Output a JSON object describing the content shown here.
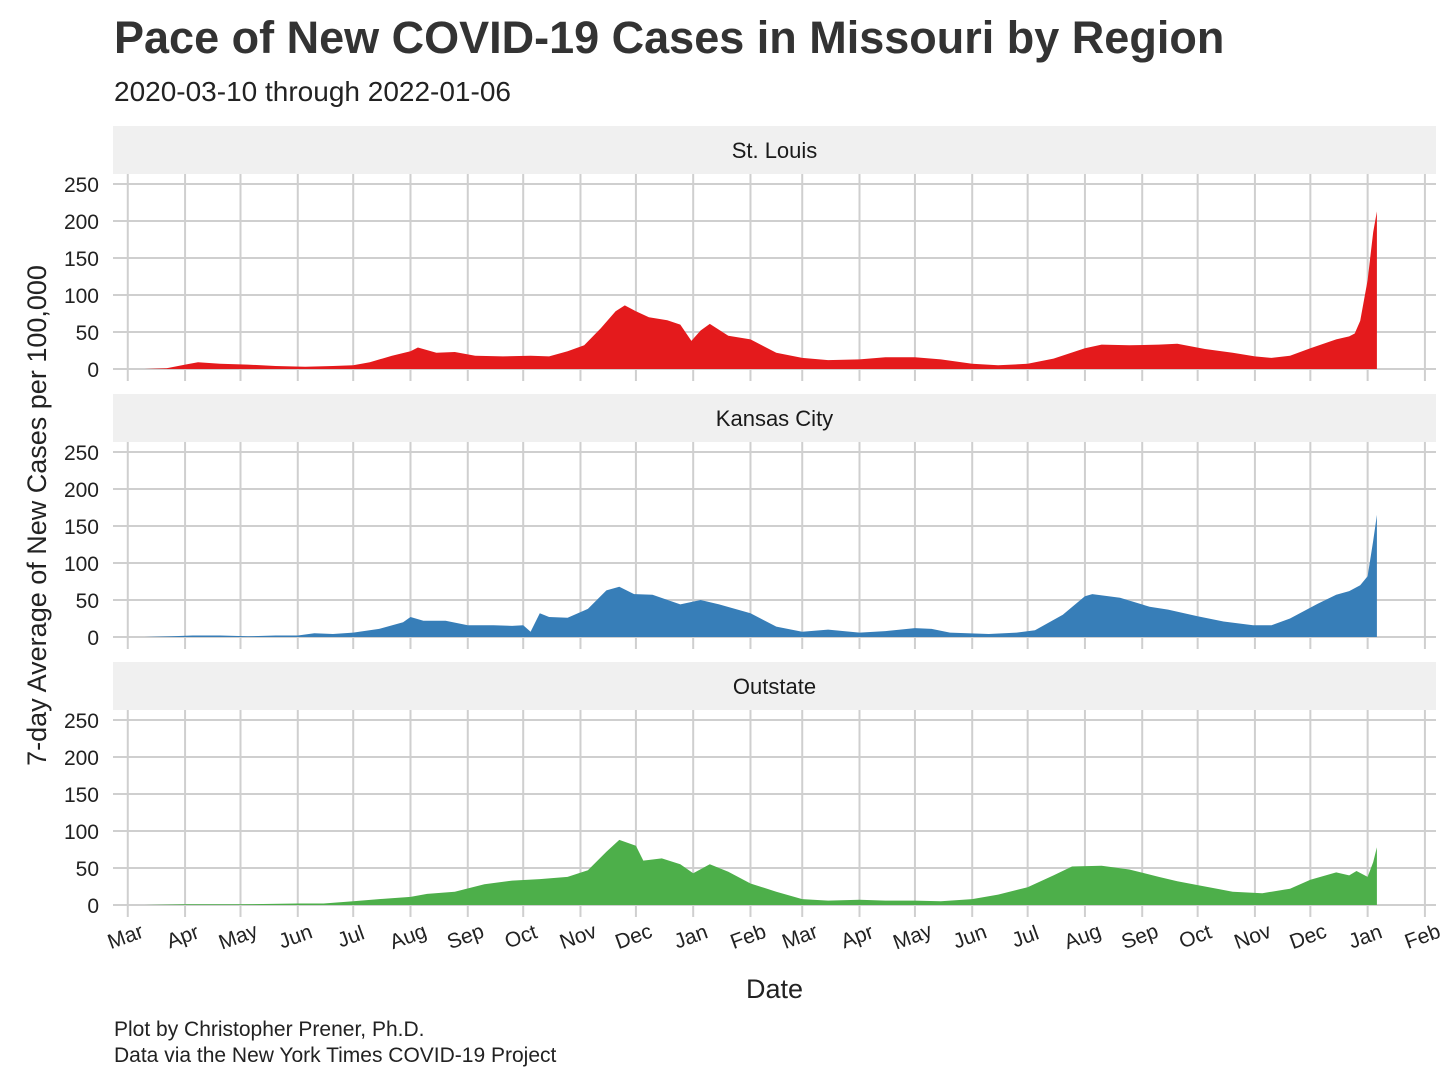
{
  "title": "Pace of New COVID-19 Cases in Missouri by Region",
  "subtitle": "2020-03-10 through 2022-01-06",
  "caption": {
    "line1": "Plot by Christopher Prener, Ph.D.",
    "line2": "Data via the New York Times COVID-19 Project"
  },
  "chart_data": {
    "type": "area",
    "title": "Pace of New COVID-19 Cases in Missouri by Region",
    "subtitle": "2020-03-10 through 2022-01-06",
    "xlabel": "Date",
    "ylabel": "7-day Average of New Cases per 100,000",
    "ylim": [
      0,
      250
    ],
    "y_ticks": [
      0,
      50,
      100,
      150,
      200,
      250
    ],
    "xlim": [
      "2020-02-22",
      "2022-02-07"
    ],
    "x_ticks": [
      {
        "date": "2020-03-01",
        "label": "Mar"
      },
      {
        "date": "2020-04-01",
        "label": "Apr"
      },
      {
        "date": "2020-05-01",
        "label": "May"
      },
      {
        "date": "2020-06-01",
        "label": "Jun"
      },
      {
        "date": "2020-07-01",
        "label": "Jul"
      },
      {
        "date": "2020-08-01",
        "label": "Aug"
      },
      {
        "date": "2020-09-01",
        "label": "Sep"
      },
      {
        "date": "2020-10-01",
        "label": "Oct"
      },
      {
        "date": "2020-11-01",
        "label": "Nov"
      },
      {
        "date": "2020-12-01",
        "label": "Dec"
      },
      {
        "date": "2021-01-01",
        "label": "Jan"
      },
      {
        "date": "2021-02-01",
        "label": "Feb"
      },
      {
        "date": "2021-03-01",
        "label": "Mar"
      },
      {
        "date": "2021-04-01",
        "label": "Apr"
      },
      {
        "date": "2021-05-01",
        "label": "May"
      },
      {
        "date": "2021-06-01",
        "label": "Jun"
      },
      {
        "date": "2021-07-01",
        "label": "Jul"
      },
      {
        "date": "2021-08-01",
        "label": "Aug"
      },
      {
        "date": "2021-09-01",
        "label": "Sep"
      },
      {
        "date": "2021-10-01",
        "label": "Oct"
      },
      {
        "date": "2021-11-01",
        "label": "Nov"
      },
      {
        "date": "2021-12-01",
        "label": "Dec"
      },
      {
        "date": "2022-01-01",
        "label": "Jan"
      },
      {
        "date": "2022-02-01",
        "label": "Feb"
      }
    ],
    "grid": true,
    "facets": [
      {
        "name": "St. Louis",
        "color": "#e41a1c",
        "points": [
          [
            "2020-03-10",
            0
          ],
          [
            "2020-03-22",
            1
          ],
          [
            "2020-04-01",
            6
          ],
          [
            "2020-04-08",
            9
          ],
          [
            "2020-04-20",
            7
          ],
          [
            "2020-05-05",
            6
          ],
          [
            "2020-05-20",
            4
          ],
          [
            "2020-06-05",
            3
          ],
          [
            "2020-06-20",
            4
          ],
          [
            "2020-07-01",
            5
          ],
          [
            "2020-07-10",
            9
          ],
          [
            "2020-07-22",
            18
          ],
          [
            "2020-08-01",
            24
          ],
          [
            "2020-08-05",
            29
          ],
          [
            "2020-08-15",
            22
          ],
          [
            "2020-08-25",
            23
          ],
          [
            "2020-09-05",
            18
          ],
          [
            "2020-09-20",
            17
          ],
          [
            "2020-10-05",
            18
          ],
          [
            "2020-10-15",
            17
          ],
          [
            "2020-10-25",
            24
          ],
          [
            "2020-11-03",
            32
          ],
          [
            "2020-11-12",
            55
          ],
          [
            "2020-11-20",
            78
          ],
          [
            "2020-11-25",
            86
          ],
          [
            "2020-12-01",
            78
          ],
          [
            "2020-12-08",
            70
          ],
          [
            "2020-12-18",
            66
          ],
          [
            "2020-12-25",
            60
          ],
          [
            "2020-12-31",
            38
          ],
          [
            "2021-01-05",
            52
          ],
          [
            "2021-01-10",
            61
          ],
          [
            "2021-01-20",
            45
          ],
          [
            "2021-02-01",
            40
          ],
          [
            "2021-02-15",
            22
          ],
          [
            "2021-03-01",
            15
          ],
          [
            "2021-03-15",
            12
          ],
          [
            "2021-04-01",
            13
          ],
          [
            "2021-04-15",
            16
          ],
          [
            "2021-05-01",
            16
          ],
          [
            "2021-05-15",
            13
          ],
          [
            "2021-06-01",
            7
          ],
          [
            "2021-06-15",
            5
          ],
          [
            "2021-07-01",
            7
          ],
          [
            "2021-07-15",
            14
          ],
          [
            "2021-08-01",
            28
          ],
          [
            "2021-08-10",
            33
          ],
          [
            "2021-08-25",
            32
          ],
          [
            "2021-09-10",
            33
          ],
          [
            "2021-09-20",
            34
          ],
          [
            "2021-10-05",
            27
          ],
          [
            "2021-10-20",
            22
          ],
          [
            "2021-11-01",
            17
          ],
          [
            "2021-11-10",
            15
          ],
          [
            "2021-11-20",
            18
          ],
          [
            "2021-12-01",
            28
          ],
          [
            "2021-12-15",
            40
          ],
          [
            "2021-12-22",
            44
          ],
          [
            "2021-12-25",
            48
          ],
          [
            "2021-12-28",
            65
          ],
          [
            "2022-01-01",
            120
          ],
          [
            "2022-01-04",
            185
          ],
          [
            "2022-01-06",
            213
          ]
        ]
      },
      {
        "name": "Kansas City",
        "color": "#377eb8",
        "points": [
          [
            "2020-03-10",
            0
          ],
          [
            "2020-03-25",
            1
          ],
          [
            "2020-04-05",
            2
          ],
          [
            "2020-04-20",
            2
          ],
          [
            "2020-05-05",
            1
          ],
          [
            "2020-05-20",
            2
          ],
          [
            "2020-06-01",
            2
          ],
          [
            "2020-06-10",
            5
          ],
          [
            "2020-06-20",
            4
          ],
          [
            "2020-07-01",
            6
          ],
          [
            "2020-07-15",
            11
          ],
          [
            "2020-07-28",
            20
          ],
          [
            "2020-08-01",
            27
          ],
          [
            "2020-08-08",
            22
          ],
          [
            "2020-08-20",
            22
          ],
          [
            "2020-09-01",
            16
          ],
          [
            "2020-09-15",
            16
          ],
          [
            "2020-09-25",
            15
          ],
          [
            "2020-10-01",
            16
          ],
          [
            "2020-10-05",
            7
          ],
          [
            "2020-10-10",
            32
          ],
          [
            "2020-10-15",
            27
          ],
          [
            "2020-10-25",
            26
          ],
          [
            "2020-11-05",
            38
          ],
          [
            "2020-11-15",
            63
          ],
          [
            "2020-11-22",
            68
          ],
          [
            "2020-11-30",
            58
          ],
          [
            "2020-12-10",
            57
          ],
          [
            "2020-12-25",
            44
          ],
          [
            "2021-01-05",
            50
          ],
          [
            "2021-01-15",
            44
          ],
          [
            "2021-02-01",
            32
          ],
          [
            "2021-02-15",
            14
          ],
          [
            "2021-03-01",
            7
          ],
          [
            "2021-03-15",
            10
          ],
          [
            "2021-04-01",
            6
          ],
          [
            "2021-04-15",
            8
          ],
          [
            "2021-05-01",
            12
          ],
          [
            "2021-05-10",
            11
          ],
          [
            "2021-05-20",
            6
          ],
          [
            "2021-06-10",
            4
          ],
          [
            "2021-06-25",
            6
          ],
          [
            "2021-07-05",
            9
          ],
          [
            "2021-07-20",
            30
          ],
          [
            "2021-08-01",
            55
          ],
          [
            "2021-08-05",
            58
          ],
          [
            "2021-08-20",
            53
          ],
          [
            "2021-09-05",
            41
          ],
          [
            "2021-09-15",
            37
          ],
          [
            "2021-10-01",
            28
          ],
          [
            "2021-10-15",
            21
          ],
          [
            "2021-10-31",
            16
          ],
          [
            "2021-11-10",
            16
          ],
          [
            "2021-11-20",
            25
          ],
          [
            "2021-12-05",
            45
          ],
          [
            "2021-12-15",
            57
          ],
          [
            "2021-12-22",
            62
          ],
          [
            "2021-12-28",
            70
          ],
          [
            "2022-01-01",
            82
          ],
          [
            "2022-01-04",
            130
          ],
          [
            "2022-01-06",
            165
          ]
        ]
      },
      {
        "name": "Outstate",
        "color": "#4daf4a",
        "points": [
          [
            "2020-03-10",
            0
          ],
          [
            "2020-04-01",
            1
          ],
          [
            "2020-05-01",
            1
          ],
          [
            "2020-06-01",
            2
          ],
          [
            "2020-06-15",
            2
          ],
          [
            "2020-07-01",
            5
          ],
          [
            "2020-07-15",
            8
          ],
          [
            "2020-08-01",
            11
          ],
          [
            "2020-08-10",
            15
          ],
          [
            "2020-08-25",
            18
          ],
          [
            "2020-09-10",
            28
          ],
          [
            "2020-09-25",
            33
          ],
          [
            "2020-10-10",
            35
          ],
          [
            "2020-10-25",
            38
          ],
          [
            "2020-11-05",
            47
          ],
          [
            "2020-11-15",
            72
          ],
          [
            "2020-11-22",
            88
          ],
          [
            "2020-12-01",
            80
          ],
          [
            "2020-12-05",
            60
          ],
          [
            "2020-12-15",
            63
          ],
          [
            "2020-12-25",
            55
          ],
          [
            "2021-01-01",
            43
          ],
          [
            "2021-01-10",
            55
          ],
          [
            "2021-01-20",
            45
          ],
          [
            "2021-02-01",
            29
          ],
          [
            "2021-02-15",
            18
          ],
          [
            "2021-03-01",
            8
          ],
          [
            "2021-03-15",
            6
          ],
          [
            "2021-04-01",
            7
          ],
          [
            "2021-04-15",
            6
          ],
          [
            "2021-05-01",
            6
          ],
          [
            "2021-05-15",
            5
          ],
          [
            "2021-06-01",
            8
          ],
          [
            "2021-06-15",
            14
          ],
          [
            "2021-07-01",
            24
          ],
          [
            "2021-07-15",
            40
          ],
          [
            "2021-07-25",
            52
          ],
          [
            "2021-08-10",
            53
          ],
          [
            "2021-08-25",
            48
          ],
          [
            "2021-09-10",
            38
          ],
          [
            "2021-09-20",
            32
          ],
          [
            "2021-10-05",
            25
          ],
          [
            "2021-10-20",
            18
          ],
          [
            "2021-11-05",
            16
          ],
          [
            "2021-11-20",
            22
          ],
          [
            "2021-12-01",
            34
          ],
          [
            "2021-12-15",
            44
          ],
          [
            "2021-12-22",
            40
          ],
          [
            "2021-12-26",
            46
          ],
          [
            "2022-01-01",
            38
          ],
          [
            "2022-01-04",
            58
          ],
          [
            "2022-01-06",
            78
          ]
        ]
      }
    ]
  }
}
